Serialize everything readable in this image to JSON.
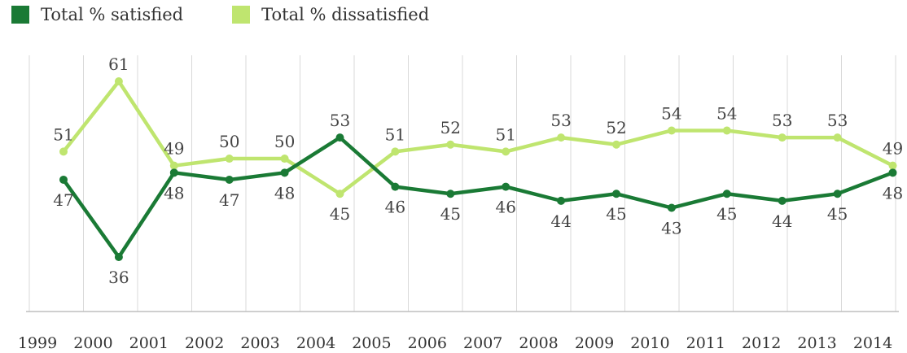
{
  "chart_data": {
    "type": "line",
    "x": [
      "1999",
      "2000",
      "2001",
      "2002",
      "2003",
      "2004",
      "2005",
      "2006",
      "2007",
      "2008",
      "2009",
      "2010",
      "2011",
      "2012",
      "2013",
      "2014"
    ],
    "series": [
      {
        "name": "Total % satisfied",
        "color": "#1a7a35",
        "values": [
          47,
          36,
          48,
          47,
          48,
          53,
          46,
          45,
          46,
          44,
          45,
          43,
          45,
          44,
          45,
          48
        ],
        "label_pos": [
          "below",
          "below",
          "below",
          "below",
          "below",
          "above",
          "below",
          "below",
          "below",
          "below",
          "below",
          "below",
          "below",
          "below",
          "below",
          "below"
        ]
      },
      {
        "name": "Total % dissatisfied",
        "color": "#bfe56f",
        "values": [
          51,
          61,
          49,
          50,
          50,
          45,
          51,
          52,
          51,
          53,
          52,
          54,
          54,
          53,
          53,
          49
        ],
        "label_pos": [
          "above",
          "above",
          "above",
          "above",
          "above",
          "below",
          "above",
          "above",
          "above",
          "above",
          "above",
          "above",
          "above",
          "above",
          "above",
          "above"
        ]
      }
    ],
    "ylim": [
      30,
      66
    ],
    "grid": "vertical",
    "legend_position": "top-left"
  }
}
